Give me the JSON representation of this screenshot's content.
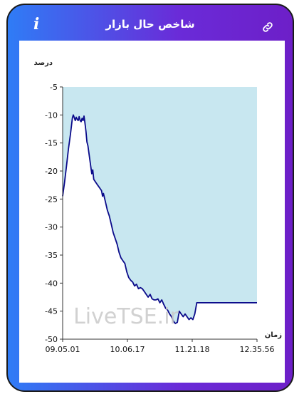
{
  "header": {
    "title": "شاخص حال بازار",
    "info_label": "i",
    "link_icon": "link-icon"
  },
  "watermark": "LiveTSE.ir",
  "colors": {
    "gradient_start": "#2f7cf6",
    "gradient_end": "#6d1fc8",
    "line": "#0a0a8a",
    "fill": "#c8e7f0"
  },
  "chart_data": {
    "type": "area",
    "title": "",
    "xlabel": "زمان",
    "ylabel": "درصد",
    "ylim": [
      -50,
      -5
    ],
    "yticks": [
      -5,
      -10,
      -15,
      -20,
      -25,
      -30,
      -35,
      -40,
      -45,
      -50
    ],
    "xticks": [
      "09.05.01",
      "10.06.17",
      "11.21.18",
      "12.35.56"
    ],
    "xlim": [
      0,
      200
    ],
    "series": [
      {
        "name": "",
        "x": [
          0,
          2,
          4,
          6,
          8,
          9,
          10,
          11,
          12,
          13,
          14,
          15,
          16,
          17,
          18,
          19,
          20,
          21,
          22,
          23,
          24,
          25,
          26,
          28,
          30,
          31,
          32,
          34,
          36,
          38,
          40,
          41,
          42,
          44,
          46,
          48,
          50,
          52,
          54,
          56,
          58,
          60,
          62,
          64,
          66,
          68,
          70,
          72,
          74,
          76,
          78,
          80,
          82,
          84,
          86,
          88,
          90,
          92,
          94,
          96,
          98,
          100,
          102,
          104,
          106,
          108,
          110,
          112,
          114,
          116,
          118,
          120,
          122,
          124,
          126,
          128,
          130,
          132,
          134,
          136,
          138,
          140,
          142,
          144,
          146,
          148,
          150,
          152,
          154,
          156,
          158,
          160,
          162,
          164,
          166,
          168,
          170,
          172,
          174,
          176,
          178,
          180,
          182,
          184,
          186,
          188,
          190,
          192,
          194,
          196,
          198,
          200
        ],
        "values": [
          -24.5,
          -22,
          -19,
          -16,
          -13.5,
          -12,
          -10.5,
          -10,
          -10.5,
          -11,
          -10.4,
          -10.8,
          -11,
          -10.3,
          -11,
          -11.2,
          -10.6,
          -11,
          -10.2,
          -11.5,
          -13,
          -14.8,
          -15.5,
          -18,
          -20.5,
          -19.8,
          -21.5,
          -22,
          -22.5,
          -23,
          -23.5,
          -24.5,
          -24,
          -25.5,
          -27,
          -28,
          -29.5,
          -31,
          -32,
          -33,
          -34.5,
          -35.5,
          -36,
          -36.5,
          -38,
          -39,
          -39.5,
          -39.8,
          -40.5,
          -40.2,
          -41,
          -40.8,
          -41,
          -41.5,
          -42,
          -42.5,
          -42,
          -42.8,
          -43,
          -43,
          -42.8,
          -43.5,
          -43,
          -43.8,
          -44.5,
          -44.8,
          -45.5,
          -46,
          -46.8,
          -47.2,
          -47,
          -45,
          -45.5,
          -46,
          -45.5,
          -46,
          -46.5,
          -46.2,
          -46.5,
          -45.5,
          -43.5,
          -43.5,
          -43.5,
          -43.5,
          -43.5,
          -43.5,
          -43.5,
          -43.5,
          -43.5,
          -43.5,
          -43.5,
          -43.5,
          -43.5,
          -43.5,
          -43.5,
          -43.5,
          -43.5,
          -43.5,
          -43.5,
          -43.5,
          -43.5,
          -43.5,
          -43.5,
          -43.5,
          -43.5,
          -43.5,
          -43.5,
          -43.5,
          -43.5,
          -43.5,
          -43.5,
          -43.5
        ]
      }
    ],
    "grid": false,
    "legend": "none"
  }
}
